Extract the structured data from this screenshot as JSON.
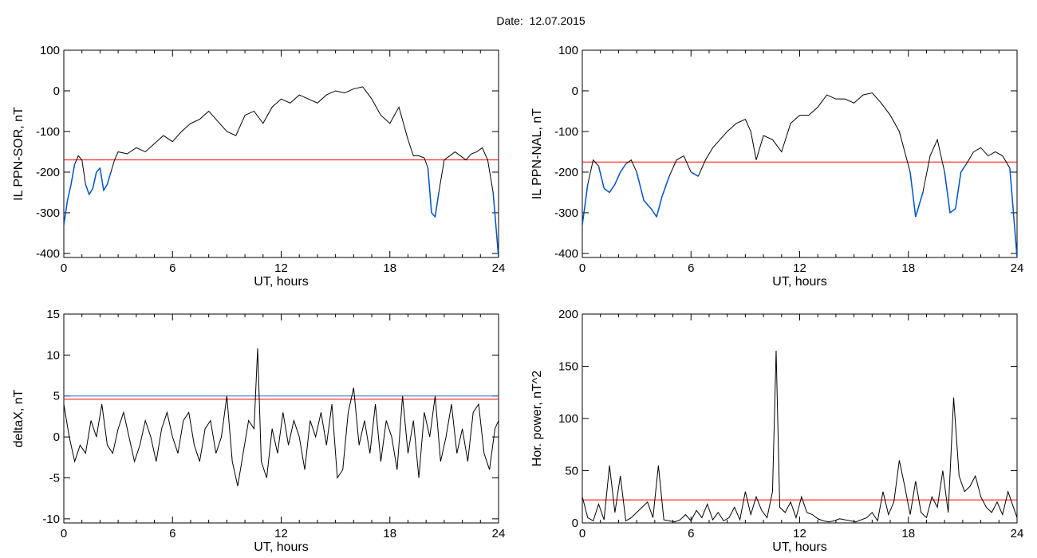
{
  "figure": {
    "date_label": "Date:",
    "date_value": "12.07.2015",
    "threshold_color": "#ff0000",
    "line_color": "#000000",
    "segment_color": "#0055cc"
  },
  "chart_data": [
    {
      "type": "line",
      "ylabel": "IL PPN-SOR, nT",
      "xlabel": "UT, hours",
      "xlim": [
        0,
        24
      ],
      "ylim": [
        -410,
        100
      ],
      "xticks": [
        "0",
        "6",
        "12",
        "18",
        "24"
      ],
      "yticks": [
        "100",
        "0",
        "-100",
        "-200",
        "-300",
        "-400"
      ],
      "ytick_values": [
        100,
        0,
        -100,
        -200,
        -300,
        -400
      ],
      "threshold": -170,
      "series": [
        {
          "x": [
            0,
            0.2,
            0.4,
            0.6,
            0.8,
            1.0,
            1.2,
            1.4,
            1.6,
            1.8,
            2.0,
            2.2,
            2.4,
            2.6,
            2.8,
            3.0,
            3.5,
            4.0,
            4.5,
            5.0,
            5.5,
            6.0,
            6.5,
            7.0,
            7.5,
            8.0,
            8.5,
            9.0,
            9.5,
            10.0,
            10.5,
            11.0,
            11.5,
            12.0,
            12.5,
            13.0,
            13.5,
            14.0,
            14.5,
            15.0,
            15.5,
            16.0,
            16.5,
            17.0,
            17.5,
            18.0,
            18.5,
            19.0,
            19.3,
            19.6,
            19.9,
            20.1,
            20.3,
            20.5,
            20.7,
            21.0,
            21.3,
            21.6,
            21.9,
            22.2,
            22.5,
            22.8,
            23.1,
            23.4,
            23.7,
            24.0
          ],
          "y": [
            -330,
            -270,
            -230,
            -180,
            -160,
            -170,
            -230,
            -255,
            -240,
            -200,
            -190,
            -245,
            -230,
            -200,
            -170,
            -150,
            -155,
            -140,
            -150,
            -130,
            -110,
            -125,
            -100,
            -80,
            -70,
            -50,
            -75,
            -100,
            -110,
            -60,
            -50,
            -80,
            -40,
            -20,
            -30,
            -10,
            -20,
            -30,
            -10,
            0,
            -5,
            5,
            10,
            -20,
            -60,
            -80,
            -40,
            -120,
            -160,
            -160,
            -165,
            -190,
            -300,
            -310,
            -250,
            -170,
            -160,
            -150,
            -160,
            -170,
            -155,
            -150,
            -140,
            -170,
            -250,
            -410
          ]
        }
      ]
    },
    {
      "type": "line",
      "ylabel": "IL PPN-NAL, nT",
      "xlabel": "UT, hours",
      "xlim": [
        0,
        24
      ],
      "ylim": [
        -410,
        100
      ],
      "xticks": [
        "0",
        "6",
        "12",
        "18",
        "24"
      ],
      "yticks": [
        "100",
        "0",
        "-100",
        "-200",
        "-300",
        "-400"
      ],
      "ytick_values": [
        100,
        0,
        -100,
        -200,
        -300,
        -400
      ],
      "threshold": -175,
      "series": [
        {
          "x": [
            0,
            0.3,
            0.6,
            0.9,
            1.2,
            1.5,
            1.8,
            2.1,
            2.4,
            2.7,
            3.0,
            3.4,
            3.8,
            4.1,
            4.4,
            4.8,
            5.2,
            5.6,
            6.0,
            6.4,
            6.8,
            7.2,
            7.6,
            8.0,
            8.5,
            9.0,
            9.3,
            9.6,
            10.0,
            10.5,
            11.0,
            11.5,
            12.0,
            12.5,
            13.0,
            13.5,
            14.0,
            14.5,
            15.0,
            15.5,
            16.0,
            16.5,
            17.0,
            17.5,
            17.8,
            18.1,
            18.4,
            18.8,
            19.2,
            19.6,
            20.0,
            20.3,
            20.6,
            20.9,
            21.2,
            21.6,
            22.0,
            22.4,
            22.8,
            23.2,
            23.6,
            24.0
          ],
          "y": [
            -330,
            -230,
            -170,
            -185,
            -240,
            -250,
            -230,
            -200,
            -180,
            -170,
            -200,
            -270,
            -290,
            -310,
            -260,
            -210,
            -170,
            -160,
            -200,
            -210,
            -170,
            -140,
            -120,
            -100,
            -80,
            -70,
            -100,
            -170,
            -110,
            -120,
            -150,
            -80,
            -60,
            -60,
            -40,
            -10,
            -20,
            -20,
            -30,
            -10,
            -5,
            -30,
            -60,
            -100,
            -150,
            -200,
            -310,
            -250,
            -160,
            -120,
            -200,
            -300,
            -290,
            -200,
            -180,
            -150,
            -140,
            -160,
            -150,
            -160,
            -190,
            -410
          ]
        }
      ]
    },
    {
      "type": "line",
      "ylabel": "deltaX, nT",
      "xlabel": "UT, hours",
      "xlim": [
        0,
        24
      ],
      "ylim": [
        -10.5,
        15
      ],
      "xticks": [
        "0",
        "6",
        "12",
        "18",
        "24"
      ],
      "yticks": [
        "15",
        "10",
        "5",
        "0",
        "-5",
        "-10"
      ],
      "ytick_values": [
        15,
        10,
        5,
        0,
        -5,
        -10
      ],
      "threshold": 4.6,
      "threshold2": 5.0,
      "series": [
        {
          "x": [
            0,
            0.3,
            0.6,
            0.9,
            1.2,
            1.5,
            1.8,
            2.1,
            2.4,
            2.7,
            3.0,
            3.3,
            3.6,
            3.9,
            4.2,
            4.5,
            4.8,
            5.1,
            5.4,
            5.7,
            6.0,
            6.3,
            6.6,
            6.9,
            7.2,
            7.5,
            7.8,
            8.1,
            8.4,
            8.7,
            9.0,
            9.3,
            9.6,
            9.9,
            10.2,
            10.5,
            10.7,
            10.9,
            11.2,
            11.5,
            11.8,
            12.1,
            12.4,
            12.7,
            13.0,
            13.3,
            13.6,
            13.9,
            14.2,
            14.5,
            14.8,
            15.1,
            15.4,
            15.7,
            16.0,
            16.3,
            16.6,
            16.9,
            17.2,
            17.5,
            17.8,
            18.1,
            18.4,
            18.7,
            19.0,
            19.3,
            19.6,
            19.9,
            20.2,
            20.5,
            20.8,
            21.1,
            21.4,
            21.7,
            22.0,
            22.3,
            22.6,
            22.9,
            23.2,
            23.5,
            23.8,
            24.0
          ],
          "y": [
            4,
            0,
            -3,
            -1,
            -2,
            2,
            0,
            4,
            -1,
            -2,
            1,
            3,
            0,
            -3,
            -1,
            2,
            0,
            -3,
            1,
            3,
            0,
            -2,
            2,
            3,
            -1,
            -3,
            1,
            2,
            -2,
            0,
            5,
            -3,
            -6,
            -2,
            2,
            1,
            10.8,
            -3,
            -5,
            1,
            -2,
            3,
            -1,
            2,
            0,
            -4,
            2,
            0,
            3,
            -1,
            4,
            -5,
            -4,
            3,
            6,
            -1,
            2,
            -2,
            4,
            -3,
            2,
            0,
            -4,
            5,
            -2,
            2,
            -5,
            3,
            0,
            5,
            -3,
            0,
            4,
            -2,
            1,
            -3,
            3,
            4,
            -2,
            -4,
            1,
            2
          ]
        }
      ]
    },
    {
      "type": "line",
      "ylabel": "Hor. power, nT^2",
      "xlabel": "UT, hours",
      "xlim": [
        0,
        24
      ],
      "ylim": [
        0,
        200
      ],
      "xticks": [
        "0",
        "6",
        "12",
        "18",
        "24"
      ],
      "yticks": [
        "200",
        "150",
        "100",
        "50",
        "0"
      ],
      "ytick_values": [
        200,
        150,
        100,
        50,
        0
      ],
      "threshold": 22,
      "series": [
        {
          "x": [
            0,
            0.3,
            0.6,
            0.9,
            1.2,
            1.5,
            1.8,
            2.1,
            2.4,
            2.7,
            3.0,
            3.3,
            3.6,
            3.9,
            4.2,
            4.5,
            4.8,
            5.1,
            5.4,
            5.7,
            6.0,
            6.3,
            6.6,
            6.9,
            7.2,
            7.5,
            7.8,
            8.1,
            8.4,
            8.7,
            9.0,
            9.3,
            9.6,
            9.9,
            10.2,
            10.5,
            10.7,
            10.9,
            11.2,
            11.5,
            11.8,
            12.1,
            12.4,
            12.7,
            13.0,
            13.3,
            13.6,
            13.9,
            14.2,
            14.5,
            14.8,
            15.1,
            15.4,
            15.7,
            16.0,
            16.3,
            16.6,
            16.9,
            17.2,
            17.5,
            17.8,
            18.1,
            18.4,
            18.7,
            19.0,
            19.3,
            19.6,
            19.9,
            20.2,
            20.5,
            20.8,
            21.1,
            21.4,
            21.7,
            22.0,
            22.3,
            22.6,
            22.9,
            23.2,
            23.5,
            23.8,
            24.0
          ],
          "y": [
            25,
            5,
            2,
            18,
            3,
            55,
            10,
            45,
            2,
            5,
            10,
            15,
            20,
            5,
            55,
            3,
            2,
            1,
            3,
            8,
            2,
            12,
            5,
            18,
            3,
            10,
            2,
            5,
            15,
            3,
            30,
            8,
            25,
            12,
            5,
            30,
            165,
            15,
            10,
            20,
            5,
            25,
            10,
            8,
            4,
            2,
            1,
            2,
            4,
            3,
            2,
            1,
            3,
            5,
            10,
            2,
            30,
            8,
            20,
            60,
            35,
            8,
            40,
            10,
            5,
            25,
            15,
            50,
            10,
            120,
            45,
            30,
            35,
            45,
            25,
            15,
            10,
            20,
            8,
            30,
            15,
            5
          ]
        }
      ]
    }
  ]
}
